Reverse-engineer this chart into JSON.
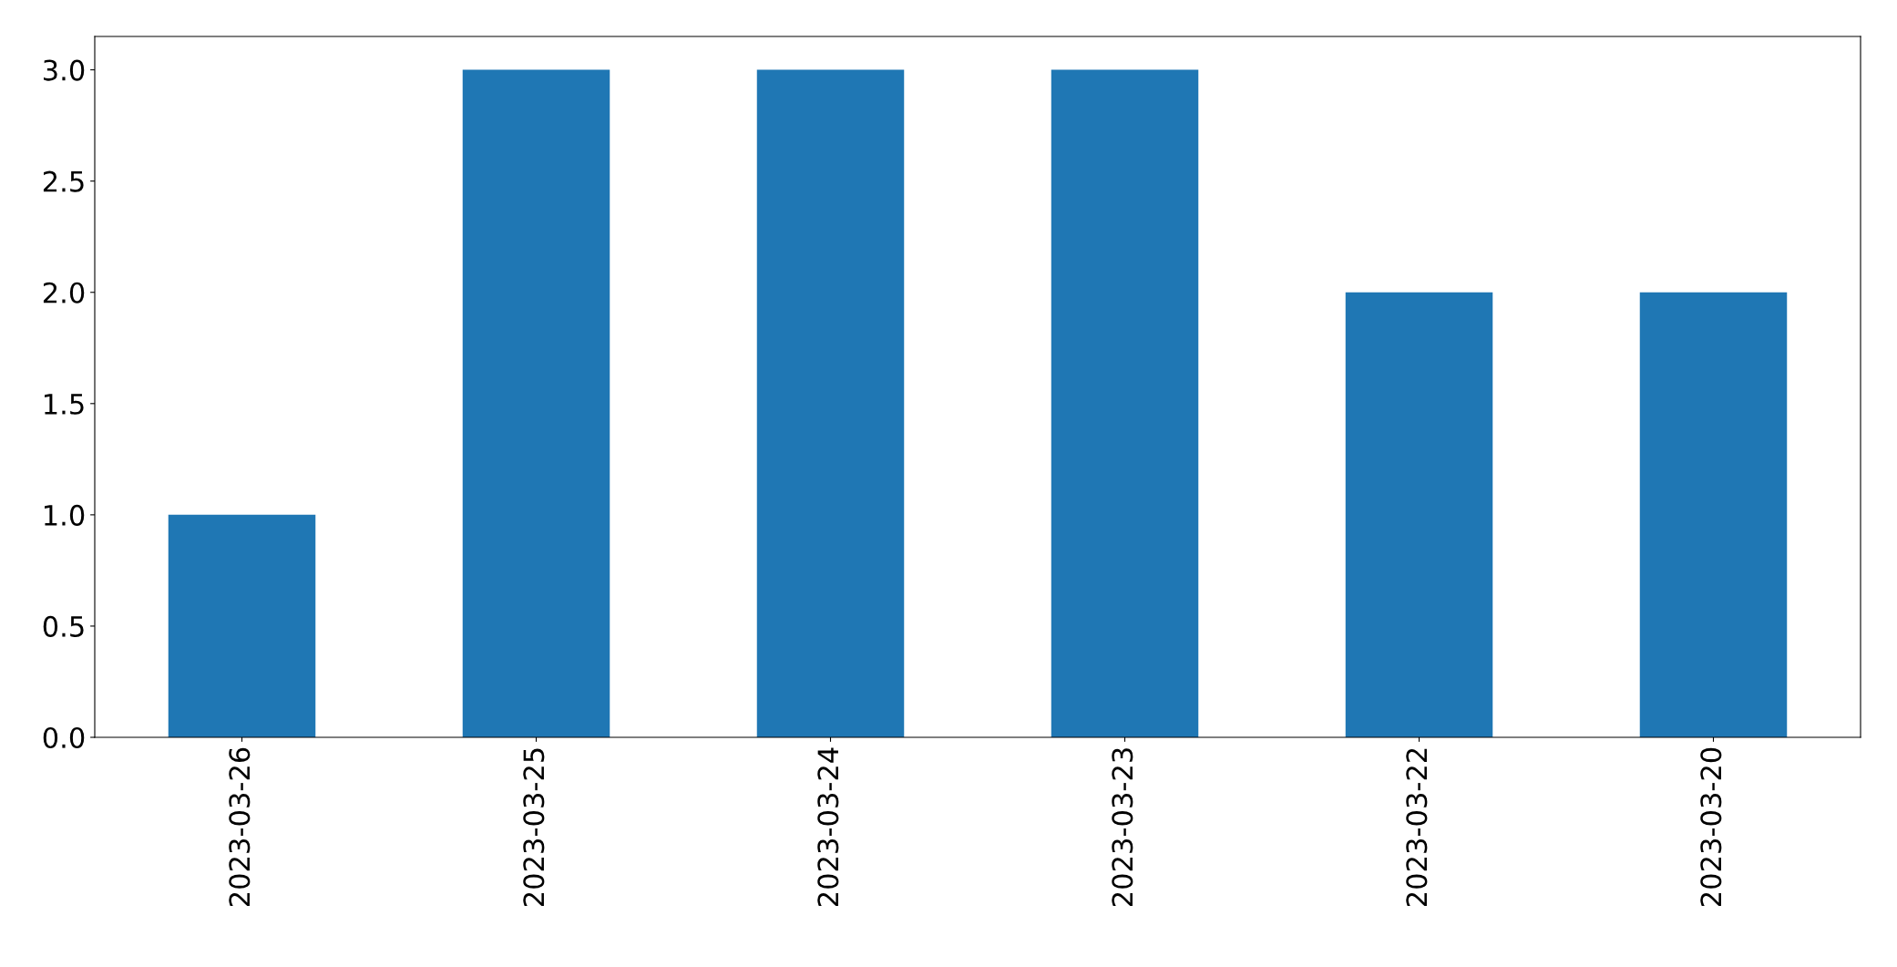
{
  "chart_data": {
    "type": "bar",
    "categories": [
      "2023-03-26",
      "2023-03-25",
      "2023-03-24",
      "2023-03-23",
      "2023-03-22",
      "2023-03-20"
    ],
    "values": [
      1,
      3,
      3,
      3,
      2,
      2
    ],
    "color": "#1f77b4",
    "ylim": [
      0,
      3.15
    ],
    "yticks": [
      {
        "value": 0,
        "label": "0.0"
      },
      {
        "value": 0.5,
        "label": "0.5"
      },
      {
        "value": 1,
        "label": "1.0"
      },
      {
        "value": 1.5,
        "label": "1.5"
      },
      {
        "value": 2,
        "label": "2.0"
      },
      {
        "value": 2.5,
        "label": "2.5"
      },
      {
        "value": 3,
        "label": "3.0"
      }
    ],
    "grid": false,
    "legend": false
  }
}
